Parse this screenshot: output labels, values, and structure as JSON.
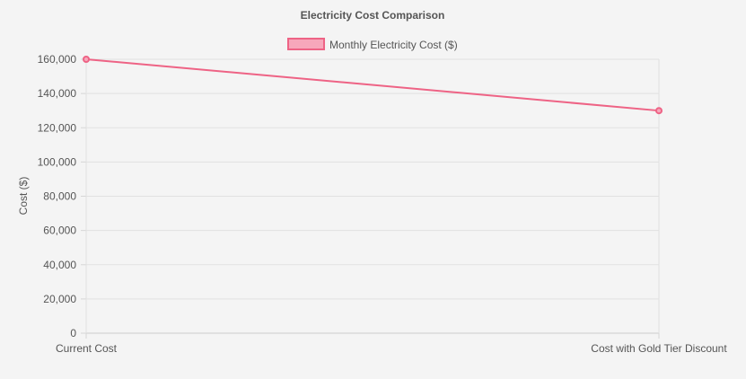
{
  "chart_data": {
    "type": "line",
    "title": "Electricity Cost Comparison",
    "xlabel": "",
    "ylabel": "Cost ($)",
    "categories": [
      "Current Cost",
      "Cost with Gold Tier Discount"
    ],
    "series": [
      {
        "name": "Monthly Electricity Cost ($)",
        "values": [
          160000,
          130000
        ],
        "color": "#ee6385",
        "fill_color": "#f7a7bb"
      }
    ],
    "ylim": [
      0,
      160000
    ],
    "yticks": [
      "0",
      "20,000",
      "40,000",
      "60,000",
      "80,000",
      "100,000",
      "120,000",
      "140,000",
      "160,000"
    ],
    "ytick_values": [
      0,
      20000,
      40000,
      60000,
      80000,
      100000,
      120000,
      140000,
      160000
    ],
    "grid": true,
    "legend_position": "top-center"
  }
}
